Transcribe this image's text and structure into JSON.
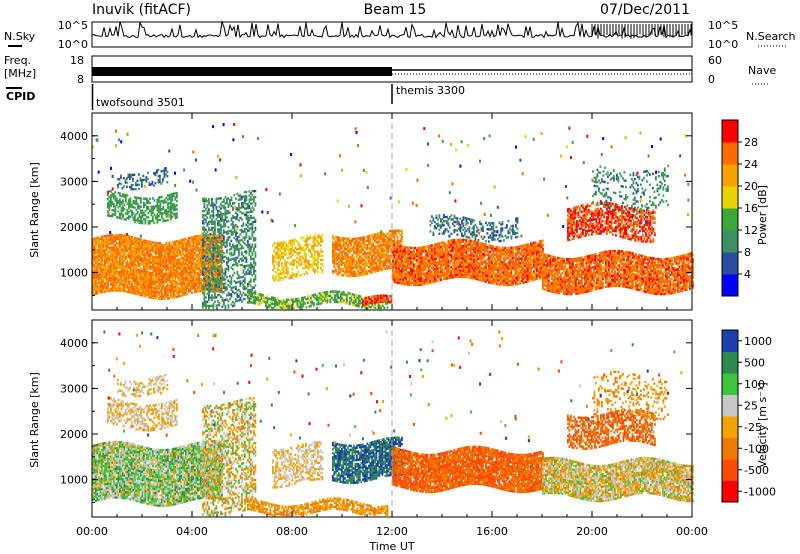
{
  "header": {
    "station": "Inuvik (fitACF)",
    "beam": "Beam 15",
    "date": "07/Dec/2011"
  },
  "params": {
    "nsky_label": "N.Sky",
    "nsearch_label": "N.Search",
    "freq_label": "Freq.",
    "freq_unit": "[MHz]",
    "nave_label": "Nave",
    "cpid_label": "CPID",
    "nsky_ticks": [
      "10^5",
      "10^0"
    ],
    "nsearch_ticks": [
      "10^5",
      "10^0"
    ],
    "freq_ticks": [
      "18",
      "8"
    ],
    "nave_ticks": [
      "60",
      "0"
    ],
    "cpid_segments": [
      {
        "name": "twofsound 3501",
        "start_hour": 0,
        "end_hour": 12
      },
      {
        "name": "themis 3300",
        "start_hour": 12,
        "end_hour": 24
      }
    ]
  },
  "colors": {
    "power_scale": [
      "#0000ff",
      "#2a4e9e",
      "#3f8f63",
      "#3aa83a",
      "#e8d400",
      "#f7a200",
      "#ff6a00",
      "#ff0000"
    ],
    "velocity_scale": [
      "#ff0000",
      "#ff4a00",
      "#f07a00",
      "#f4a300",
      "#c8c8c8",
      "#3fc43f",
      "#2f8a4f",
      "#1c3fb0"
    ],
    "cpid_marker": "#000000",
    "dashed_line": "#aaaaaa"
  },
  "chart_data": [
    {
      "type": "heatmap",
      "name": "power",
      "ylabel": "Slant Range [km]",
      "xlabel": "Time UT",
      "x_ticks": [
        "00:00",
        "04:00",
        "08:00",
        "12:00",
        "16:00",
        "20:00",
        "00:00"
      ],
      "y_ticks": [
        "1000",
        "2000",
        "3000",
        "4000"
      ],
      "xlim_hours": [
        0,
        24
      ],
      "ylim_km": [
        180,
        4500
      ],
      "colorbar": {
        "label": "Power [dB]",
        "ticks": [
          "4",
          "8",
          "12",
          "16",
          "20",
          "24",
          "28"
        ],
        "range": [
          0,
          32
        ]
      },
      "regions": [
        {
          "t0": 0.0,
          "t1": 5.2,
          "r0": 500,
          "r1": 1750,
          "value": 24,
          "spread": 8,
          "density": 0.9
        },
        {
          "t0": 0.6,
          "t1": 3.4,
          "r0": 2150,
          "r1": 2700,
          "value": 12,
          "spread": 5,
          "density": 0.55
        },
        {
          "t0": 1.0,
          "t1": 3.0,
          "r0": 2900,
          "r1": 3250,
          "value": 8,
          "spread": 4,
          "density": 0.35
        },
        {
          "t0": 4.4,
          "t1": 6.5,
          "r0": 250,
          "r1": 2700,
          "value": 10,
          "spread": 6,
          "density": 0.45
        },
        {
          "t0": 6.2,
          "t1": 11.8,
          "r0": 250,
          "r1": 500,
          "value": 14,
          "spread": 10,
          "density": 0.7
        },
        {
          "t0": 7.2,
          "t1": 9.2,
          "r0": 900,
          "r1": 1750,
          "value": 20,
          "spread": 8,
          "density": 0.5
        },
        {
          "t0": 9.6,
          "t1": 12.4,
          "r0": 1000,
          "r1": 1850,
          "value": 24,
          "spread": 8,
          "density": 0.8
        },
        {
          "t0": 10.8,
          "t1": 12.0,
          "r0": 250,
          "r1": 400,
          "value": 28,
          "spread": 4,
          "density": 0.8
        },
        {
          "t0": 12.0,
          "t1": 18.0,
          "r0": 800,
          "r1": 1650,
          "value": 26,
          "spread": 6,
          "density": 0.9
        },
        {
          "t0": 13.5,
          "t1": 17.0,
          "r0": 1750,
          "r1": 2200,
          "value": 8,
          "spread": 5,
          "density": 0.35
        },
        {
          "t0": 18.0,
          "t1": 24.0,
          "r0": 600,
          "r1": 1400,
          "value": 26,
          "spread": 6,
          "density": 0.85
        },
        {
          "t0": 19.0,
          "t1": 22.5,
          "r0": 1750,
          "r1": 2450,
          "value": 28,
          "spread": 4,
          "density": 0.6
        },
        {
          "t0": 20.0,
          "t1": 23.0,
          "r0": 2400,
          "r1": 3300,
          "value": 10,
          "spread": 8,
          "density": 0.2
        }
      ]
    },
    {
      "type": "heatmap",
      "name": "velocity",
      "ylabel": "Slant Range [km]",
      "xlabel": "Time UT",
      "x_ticks": [
        "00:00",
        "04:00",
        "08:00",
        "12:00",
        "16:00",
        "20:00",
        "00:00"
      ],
      "y_ticks": [
        "1000",
        "2000",
        "3000",
        "4000"
      ],
      "xlim_hours": [
        0,
        24
      ],
      "ylim_km": [
        180,
        4500
      ],
      "colorbar": {
        "label": "Velocity [m s⁻¹]",
        "ticks": [
          "-1000",
          "-500",
          "-100",
          "-25",
          "25",
          "100",
          "500",
          "1000"
        ],
        "range": [
          0,
          8
        ]
      },
      "regions": [
        {
          "t0": 0.0,
          "t1": 5.2,
          "r0": 500,
          "r1": 1750,
          "value": 5,
          "spread": 3,
          "density": 0.9
        },
        {
          "t0": 0.6,
          "t1": 3.4,
          "r0": 2150,
          "r1": 2700,
          "value": 4,
          "spread": 1,
          "density": 0.55
        },
        {
          "t0": 1.0,
          "t1": 3.0,
          "r0": 2900,
          "r1": 3250,
          "value": 4,
          "spread": 1,
          "density": 0.35
        },
        {
          "t0": 4.4,
          "t1": 6.5,
          "r0": 250,
          "r1": 2700,
          "value": 4,
          "spread": 4,
          "density": 0.45
        },
        {
          "t0": 6.2,
          "t1": 11.8,
          "r0": 250,
          "r1": 500,
          "value": 3,
          "spread": 2,
          "density": 0.7
        },
        {
          "t0": 7.2,
          "t1": 9.2,
          "r0": 900,
          "r1": 1750,
          "value": 4,
          "spread": 2,
          "density": 0.5
        },
        {
          "t0": 9.6,
          "t1": 12.4,
          "r0": 1000,
          "r1": 1850,
          "value": 7,
          "spread": 2,
          "density": 0.8
        },
        {
          "t0": 12.0,
          "t1": 18.0,
          "r0": 800,
          "r1": 1650,
          "value": 2,
          "spread": 2,
          "density": 0.9
        },
        {
          "t0": 18.0,
          "t1": 24.0,
          "r0": 600,
          "r1": 1400,
          "value": 4,
          "spread": 3,
          "density": 0.85
        },
        {
          "t0": 19.0,
          "t1": 22.5,
          "r0": 1750,
          "r1": 2450,
          "value": 2,
          "spread": 2,
          "density": 0.6
        },
        {
          "t0": 20.0,
          "t1": 23.0,
          "r0": 2400,
          "r1": 3300,
          "value": 3,
          "spread": 2,
          "density": 0.2
        }
      ]
    }
  ]
}
